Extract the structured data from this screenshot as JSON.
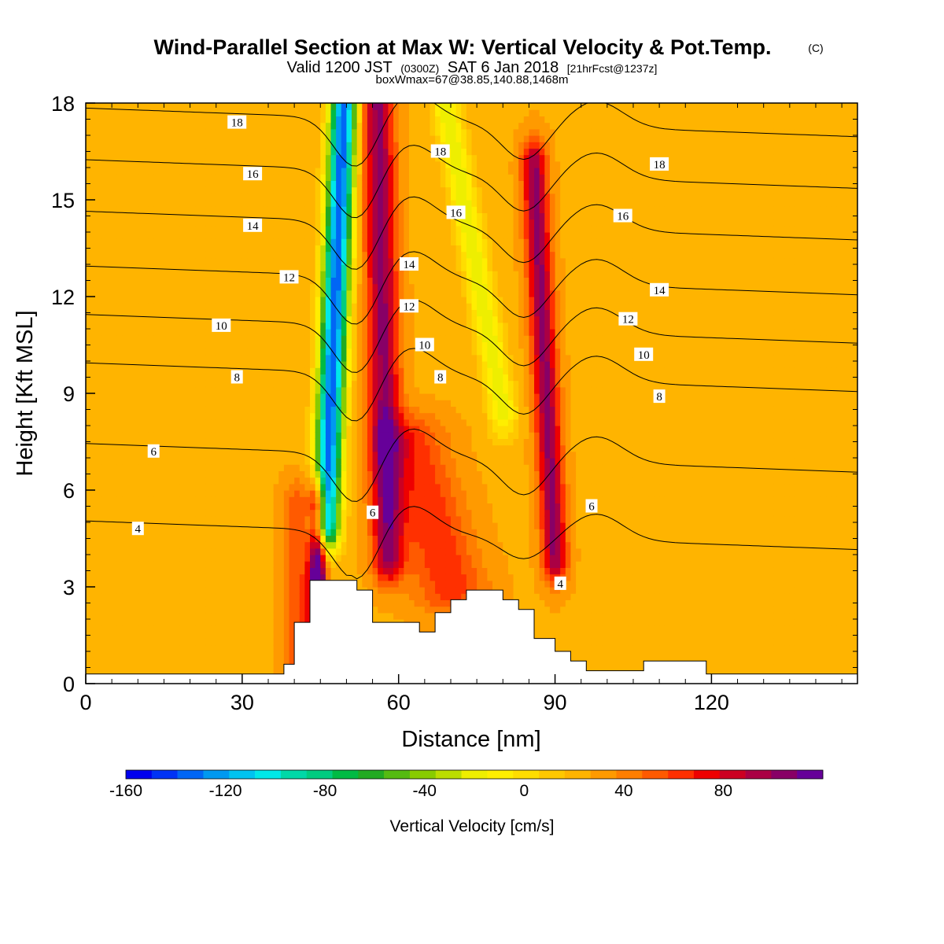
{
  "title": {
    "main": "Wind-Parallel Section at Max W: Vertical Velocity & Pot.Temp.",
    "copyright": "(C)",
    "valid_prefix": "Valid 1200 JST",
    "valid_utc": "(0300Z)",
    "valid_date": "SAT 6 Jan 2018",
    "forecast": "[21hrFcst@1237z]",
    "boxinfo": "boxWmax=67@38.85,140.88,1468m"
  },
  "chart_data": {
    "type": "heatmap",
    "xlabel": "Distance [nm]",
    "ylabel": "Height [Kft MSL]",
    "xlim": [
      0,
      148
    ],
    "ylim": [
      0,
      18
    ],
    "x_ticks": [
      0,
      30,
      60,
      90,
      120
    ],
    "y_ticks": [
      0,
      3,
      6,
      9,
      12,
      15,
      18
    ],
    "colorbar": {
      "label": "Vertical Velocity [cm/s]",
      "tick_values": [
        -160,
        -120,
        -80,
        -40,
        0,
        40,
        80
      ],
      "min": -160,
      "max": 110,
      "step": 10,
      "colors": [
        "#0000ee",
        "#0033f5",
        "#0066f5",
        "#0099f0",
        "#00c3f0",
        "#00e8e8",
        "#00d8a8",
        "#00cc80",
        "#00bb44",
        "#22aa22",
        "#55bb11",
        "#88cc00",
        "#bbdd00",
        "#eeee00",
        "#ffee00",
        "#ffdd00",
        "#ffc800",
        "#ffb400",
        "#ff9a00",
        "#ff7e00",
        "#ff5a00",
        "#ff3000",
        "#ee0000",
        "#cc0022",
        "#aa0044",
        "#880066",
        "#660099"
      ]
    },
    "terrain": [
      [
        0,
        0.3
      ],
      [
        38,
        0.3
      ],
      [
        38,
        0.6
      ],
      [
        40,
        0.6
      ],
      [
        40,
        1.9
      ],
      [
        43,
        1.9
      ],
      [
        43,
        3.2
      ],
      [
        52,
        3.2
      ],
      [
        52,
        2.9
      ],
      [
        55,
        2.9
      ],
      [
        55,
        1.9
      ],
      [
        64,
        1.9
      ],
      [
        64,
        1.6
      ],
      [
        67,
        1.6
      ],
      [
        67,
        2.2
      ],
      [
        70,
        2.2
      ],
      [
        70,
        2.6
      ],
      [
        73,
        2.6
      ],
      [
        73,
        2.9
      ],
      [
        80,
        2.9
      ],
      [
        80,
        2.6
      ],
      [
        83,
        2.6
      ],
      [
        83,
        2.3
      ],
      [
        86,
        2.3
      ],
      [
        86,
        1.4
      ],
      [
        90,
        1.4
      ],
      [
        90,
        1.0
      ],
      [
        93,
        1.0
      ],
      [
        93,
        0.7
      ],
      [
        96,
        0.7
      ],
      [
        96,
        0.4
      ],
      [
        107,
        0.4
      ],
      [
        107,
        0.7
      ],
      [
        119,
        0.7
      ],
      [
        119,
        0.3
      ],
      [
        148,
        0.3
      ]
    ],
    "velocity_features": [
      {
        "x": [
          49.5,
          46
        ],
        "y": [
          18,
          5
        ],
        "amplitude": -155,
        "width_nm": 2.6
      },
      {
        "x": [
          44.5,
          44.5
        ],
        "y": [
          5.5,
          1.9
        ],
        "amplitude": 110,
        "width_nm": 1.6
      },
      {
        "x": [
          56,
          58
        ],
        "y": [
          18,
          4
        ],
        "amplitude": 75,
        "width_nm": 3.0
      },
      {
        "x": [
          69,
          80
        ],
        "y": [
          18,
          8.5
        ],
        "amplitude": -45,
        "width_nm": 2.7
      },
      {
        "x": [
          86,
          90
        ],
        "y": [
          16,
          4
        ],
        "amplitude": 75,
        "width_nm": 2.4
      },
      {
        "x": [
          62,
          70
        ],
        "y": [
          7.5,
          3
        ],
        "amplitude": 40,
        "width_nm": 7
      },
      {
        "x": [
          41,
          41
        ],
        "y": [
          5.5,
          0.6
        ],
        "amplitude": 30,
        "width_nm": 3
      }
    ],
    "isentropes": [
      {
        "label": "4",
        "label_x": 10,
        "base_height": 4.6
      },
      {
        "label": "6",
        "label_x": 13,
        "base_height": 7.0
      },
      {
        "label": "8",
        "label_x": 29,
        "base_height": 9.5
      },
      {
        "label": "10",
        "label_x": 26,
        "base_height": 11.0
      },
      {
        "label": "12",
        "label_x": 39,
        "base_height": 12.5
      },
      {
        "label": "14",
        "label_x": 32,
        "base_height": 14.2
      },
      {
        "label": "16",
        "label_x": 32,
        "base_height": 15.8
      },
      {
        "label": "18",
        "label_x": 29,
        "base_height": 17.4
      }
    ],
    "contour_labels": [
      {
        "text": "18",
        "x": 29,
        "y": 17.4
      },
      {
        "text": "16",
        "x": 32,
        "y": 15.8
      },
      {
        "text": "14",
        "x": 32,
        "y": 14.2
      },
      {
        "text": "12",
        "x": 39,
        "y": 12.6
      },
      {
        "text": "10",
        "x": 26,
        "y": 11.1
      },
      {
        "text": "8",
        "x": 29,
        "y": 9.5
      },
      {
        "text": "6",
        "x": 13,
        "y": 7.2
      },
      {
        "text": "4",
        "x": 10,
        "y": 4.8
      },
      {
        "text": "18",
        "x": 68,
        "y": 16.5
      },
      {
        "text": "16",
        "x": 71,
        "y": 14.6
      },
      {
        "text": "14",
        "x": 62,
        "y": 13.0
      },
      {
        "text": "12",
        "x": 62,
        "y": 11.7
      },
      {
        "text": "10",
        "x": 65,
        "y": 10.5
      },
      {
        "text": "8",
        "x": 68,
        "y": 9.5
      },
      {
        "text": "6",
        "x": 55,
        "y": 5.3
      },
      {
        "text": "18",
        "x": 110,
        "y": 16.1
      },
      {
        "text": "16",
        "x": 103,
        "y": 14.5
      },
      {
        "text": "14",
        "x": 110,
        "y": 12.2
      },
      {
        "text": "12",
        "x": 104,
        "y": 11.3
      },
      {
        "text": "10",
        "x": 107,
        "y": 10.2
      },
      {
        "text": "8",
        "x": 110,
        "y": 8.9
      },
      {
        "text": "6",
        "x": 97,
        "y": 5.5
      },
      {
        "text": "4",
        "x": 91,
        "y": 3.1
      }
    ]
  }
}
